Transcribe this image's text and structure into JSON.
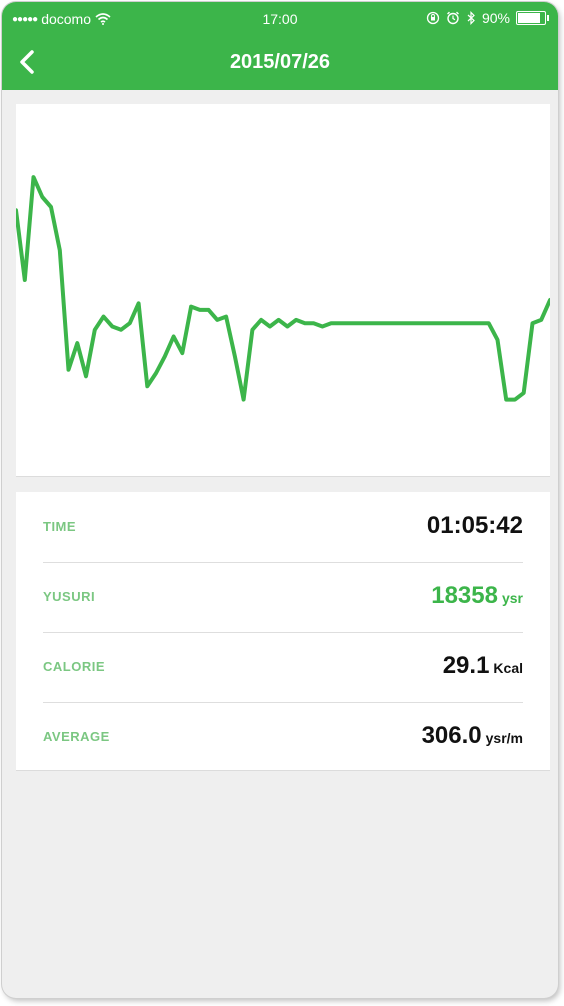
{
  "status_bar": {
    "carrier": "docomo",
    "signal_dots": "●●●●●",
    "time": "17:00",
    "battery": "90%",
    "battery_level": 0.9,
    "icons": [
      "wifi-icon",
      "orientation-lock-icon",
      "alarm-icon",
      "bluetooth-icon",
      "battery-icon"
    ]
  },
  "nav": {
    "title": "2015/07/26",
    "back_icon": "chevron-left-icon"
  },
  "colors": {
    "accent": "#3cb54a",
    "label": "#7bc782",
    "value": "#111111",
    "background": "#efefef"
  },
  "chart_data": {
    "type": "line",
    "title": "",
    "xlabel": "",
    "ylabel": "",
    "grid": false,
    "legend": "none",
    "ylim": [
      0,
      100
    ],
    "x": [
      0,
      1,
      2,
      3,
      4,
      5,
      6,
      7,
      8,
      9,
      10,
      11,
      12,
      13,
      14,
      15,
      16,
      17,
      18,
      19,
      20,
      21,
      22,
      23,
      24,
      25,
      26,
      27,
      28,
      29,
      30,
      31,
      32,
      33,
      34,
      35,
      36,
      37,
      38,
      39,
      40,
      41,
      42,
      43,
      44,
      45,
      46,
      47,
      48,
      49,
      50,
      51,
      52,
      53,
      54,
      55,
      56,
      57,
      58,
      59,
      60,
      61
    ],
    "series": [
      {
        "color": "#3cb54a",
        "values": [
          74,
          53,
          84,
          78,
          75,
          62,
          26,
          34,
          24,
          38,
          42,
          39,
          38,
          40,
          46,
          21,
          25,
          30,
          36,
          31,
          45,
          44,
          44,
          41,
          42,
          30,
          17,
          38,
          41,
          39,
          41,
          39,
          41,
          40,
          40,
          39,
          40,
          40,
          40,
          40,
          40,
          40,
          40,
          40,
          40,
          40,
          40,
          40,
          40,
          40,
          40,
          40,
          40,
          40,
          40,
          35,
          17,
          17,
          19,
          40,
          41,
          47
        ]
      }
    ]
  },
  "stats": [
    {
      "label": "TIME",
      "value": "01:05:42",
      "unit": "",
      "highlight": false
    },
    {
      "label": "YUSURI",
      "value": "18358",
      "unit": "ysr",
      "highlight": true
    },
    {
      "label": "CALORIE",
      "value": "29.1",
      "unit": "Kcal",
      "highlight": false
    },
    {
      "label": "AVERAGE",
      "value": "306.0",
      "unit": "ysr/m",
      "highlight": false
    }
  ]
}
